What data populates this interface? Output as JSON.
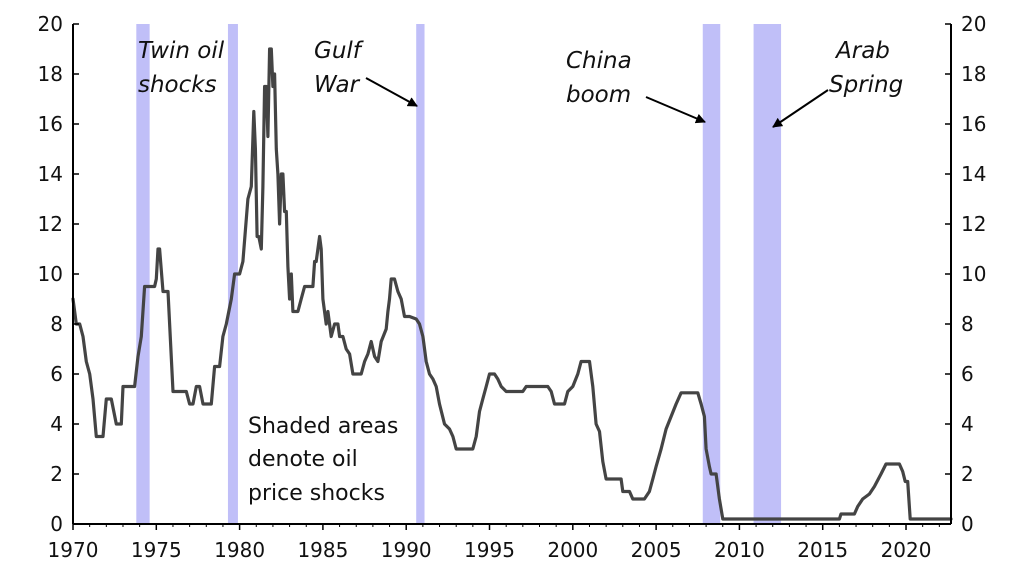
{
  "chart_data": {
    "type": "line",
    "xlim": [
      1970,
      2022.7
    ],
    "ylim": [
      0,
      20
    ],
    "x_ticks": [
      "1970",
      "1975",
      "1980",
      "1985",
      "1990",
      "1995",
      "2000",
      "2005",
      "2010",
      "2015",
      "2020"
    ],
    "y_ticks": [
      "0",
      "2",
      "4",
      "6",
      "8",
      "10",
      "12",
      "14",
      "16",
      "18",
      "20"
    ],
    "series": [
      {
        "color": "#444444",
        "points": [
          [
            1970.0,
            9.0
          ],
          [
            1970.2,
            8.0
          ],
          [
            1970.4,
            8.0
          ],
          [
            1970.6,
            7.5
          ],
          [
            1970.8,
            6.5
          ],
          [
            1971.0,
            6.0
          ],
          [
            1971.2,
            5.0
          ],
          [
            1971.4,
            3.5
          ],
          [
            1971.8,
            3.5
          ],
          [
            1972.0,
            5.0
          ],
          [
            1972.3,
            5.0
          ],
          [
            1972.6,
            4.0
          ],
          [
            1972.9,
            4.0
          ],
          [
            1973.0,
            5.5
          ],
          [
            1973.3,
            5.5
          ],
          [
            1973.7,
            5.5
          ],
          [
            1973.9,
            6.7
          ],
          [
            1974.1,
            7.5
          ],
          [
            1974.3,
            9.5
          ],
          [
            1974.9,
            9.5
          ],
          [
            1975.0,
            9.8
          ],
          [
            1975.1,
            11.0
          ],
          [
            1975.2,
            11.0
          ],
          [
            1975.4,
            9.3
          ],
          [
            1975.7,
            9.3
          ],
          [
            1976.0,
            5.3
          ],
          [
            1976.5,
            5.3
          ],
          [
            1976.8,
            5.3
          ],
          [
            1977.0,
            4.8
          ],
          [
            1977.2,
            4.8
          ],
          [
            1977.4,
            5.5
          ],
          [
            1977.6,
            5.5
          ],
          [
            1977.8,
            4.8
          ],
          [
            1978.3,
            4.8
          ],
          [
            1978.5,
            6.3
          ],
          [
            1978.8,
            6.3
          ],
          [
            1979.0,
            7.5
          ],
          [
            1979.2,
            8.0
          ],
          [
            1979.5,
            9.0
          ],
          [
            1979.7,
            10.0
          ],
          [
            1980.0,
            10.0
          ],
          [
            1980.2,
            10.5
          ],
          [
            1980.5,
            13.0
          ],
          [
            1980.7,
            13.5
          ],
          [
            1980.85,
            16.5
          ],
          [
            1980.95,
            15.0
          ],
          [
            1981.05,
            11.5
          ],
          [
            1981.15,
            11.5
          ],
          [
            1981.3,
            11.0
          ],
          [
            1981.4,
            13.5
          ],
          [
            1981.5,
            17.5
          ],
          [
            1981.6,
            17.5
          ],
          [
            1981.7,
            15.5
          ],
          [
            1981.8,
            19.0
          ],
          [
            1981.9,
            19.0
          ],
          [
            1982.0,
            17.5
          ],
          [
            1982.1,
            18.0
          ],
          [
            1982.2,
            15.0
          ],
          [
            1982.3,
            14.0
          ],
          [
            1982.4,
            12.0
          ],
          [
            1982.5,
            14.0
          ],
          [
            1982.6,
            14.0
          ],
          [
            1982.7,
            12.5
          ],
          [
            1982.8,
            12.5
          ],
          [
            1982.9,
            10.3
          ],
          [
            1983.0,
            9.0
          ],
          [
            1983.1,
            10.0
          ],
          [
            1983.2,
            8.5
          ],
          [
            1983.5,
            8.5
          ],
          [
            1983.7,
            9.0
          ],
          [
            1983.9,
            9.5
          ],
          [
            1984.2,
            9.5
          ],
          [
            1984.4,
            9.5
          ],
          [
            1984.5,
            10.5
          ],
          [
            1984.6,
            10.5
          ],
          [
            1984.7,
            11.0
          ],
          [
            1984.8,
            11.5
          ],
          [
            1984.9,
            11.0
          ],
          [
            1985.0,
            9.0
          ],
          [
            1985.2,
            8.0
          ],
          [
            1985.3,
            8.5
          ],
          [
            1985.5,
            7.5
          ],
          [
            1985.7,
            8.0
          ],
          [
            1985.9,
            8.0
          ],
          [
            1986.0,
            7.5
          ],
          [
            1986.2,
            7.5
          ],
          [
            1986.4,
            7.0
          ],
          [
            1986.6,
            6.8
          ],
          [
            1986.8,
            6.0
          ],
          [
            1987.3,
            6.0
          ],
          [
            1987.5,
            6.5
          ],
          [
            1987.7,
            6.8
          ],
          [
            1987.9,
            7.3
          ],
          [
            1988.1,
            6.7
          ],
          [
            1988.3,
            6.5
          ],
          [
            1988.5,
            7.3
          ],
          [
            1988.8,
            7.8
          ],
          [
            1988.9,
            8.5
          ],
          [
            1989.0,
            9.0
          ],
          [
            1989.1,
            9.8
          ],
          [
            1989.3,
            9.8
          ],
          [
            1989.5,
            9.3
          ],
          [
            1989.7,
            9.0
          ],
          [
            1989.9,
            8.3
          ],
          [
            1990.2,
            8.3
          ],
          [
            1990.6,
            8.2
          ],
          [
            1990.8,
            8.0
          ],
          [
            1991.0,
            7.5
          ],
          [
            1991.2,
            6.5
          ],
          [
            1991.4,
            6.0
          ],
          [
            1991.6,
            5.8
          ],
          [
            1991.8,
            5.5
          ],
          [
            1992.0,
            4.8
          ],
          [
            1992.3,
            4.0
          ],
          [
            1992.6,
            3.8
          ],
          [
            1992.8,
            3.5
          ],
          [
            1993.0,
            3.0
          ],
          [
            1994.0,
            3.0
          ],
          [
            1994.2,
            3.5
          ],
          [
            1994.4,
            4.5
          ],
          [
            1994.6,
            5.0
          ],
          [
            1994.8,
            5.5
          ],
          [
            1995.0,
            6.0
          ],
          [
            1995.3,
            6.0
          ],
          [
            1995.5,
            5.8
          ],
          [
            1995.7,
            5.5
          ],
          [
            1996.0,
            5.3
          ],
          [
            1997.0,
            5.3
          ],
          [
            1997.2,
            5.5
          ],
          [
            1998.0,
            5.5
          ],
          [
            1998.5,
            5.5
          ],
          [
            1998.7,
            5.3
          ],
          [
            1998.9,
            4.8
          ],
          [
            1999.5,
            4.8
          ],
          [
            1999.7,
            5.3
          ],
          [
            2000.0,
            5.5
          ],
          [
            2000.3,
            6.0
          ],
          [
            2000.5,
            6.5
          ],
          [
            2001.0,
            6.5
          ],
          [
            2001.2,
            5.5
          ],
          [
            2001.4,
            4.0
          ],
          [
            2001.6,
            3.7
          ],
          [
            2001.8,
            2.5
          ],
          [
            2002.0,
            1.8
          ],
          [
            2002.5,
            1.8
          ],
          [
            2002.9,
            1.8
          ],
          [
            2003.0,
            1.3
          ],
          [
            2003.4,
            1.3
          ],
          [
            2003.6,
            1.0
          ],
          [
            2004.3,
            1.0
          ],
          [
            2004.6,
            1.3
          ],
          [
            2004.8,
            1.8
          ],
          [
            2005.0,
            2.3
          ],
          [
            2005.3,
            3.0
          ],
          [
            2005.6,
            3.8
          ],
          [
            2005.9,
            4.3
          ],
          [
            2006.2,
            4.8
          ],
          [
            2006.5,
            5.25
          ],
          [
            2007.5,
            5.25
          ],
          [
            2007.7,
            4.8
          ],
          [
            2007.9,
            4.3
          ],
          [
            2008.0,
            3.0
          ],
          [
            2008.2,
            2.3
          ],
          [
            2008.3,
            2.0
          ],
          [
            2008.6,
            2.0
          ],
          [
            2008.8,
            1.0
          ],
          [
            2009.0,
            0.2
          ],
          [
            2016.0,
            0.2
          ],
          [
            2016.1,
            0.4
          ],
          [
            2016.9,
            0.4
          ],
          [
            2017.1,
            0.7
          ],
          [
            2017.4,
            1.0
          ],
          [
            2017.8,
            1.2
          ],
          [
            2018.1,
            1.5
          ],
          [
            2018.5,
            2.0
          ],
          [
            2018.8,
            2.4
          ],
          [
            2019.6,
            2.4
          ],
          [
            2019.8,
            2.1
          ],
          [
            2019.95,
            1.7
          ],
          [
            2020.1,
            1.7
          ],
          [
            2020.25,
            0.2
          ],
          [
            2022.7,
            0.2
          ]
        ]
      }
    ],
    "shaded_periods": [
      [
        1973.8,
        1974.6
      ],
      [
        1979.3,
        1979.9
      ],
      [
        1990.6,
        1991.1
      ],
      [
        2007.8,
        2008.85
      ],
      [
        2010.85,
        2012.5
      ]
    ],
    "shade_color": "#c0bff8",
    "annotations": {
      "twin": [
        "Twin oil",
        "shocks"
      ],
      "gulf": [
        "Gulf",
        "War"
      ],
      "china": [
        "China",
        "boom"
      ],
      "arab": [
        "Arab",
        "Spring"
      ]
    },
    "note_lines": [
      "Shaded areas",
      "denote oil",
      "price shocks"
    ]
  }
}
